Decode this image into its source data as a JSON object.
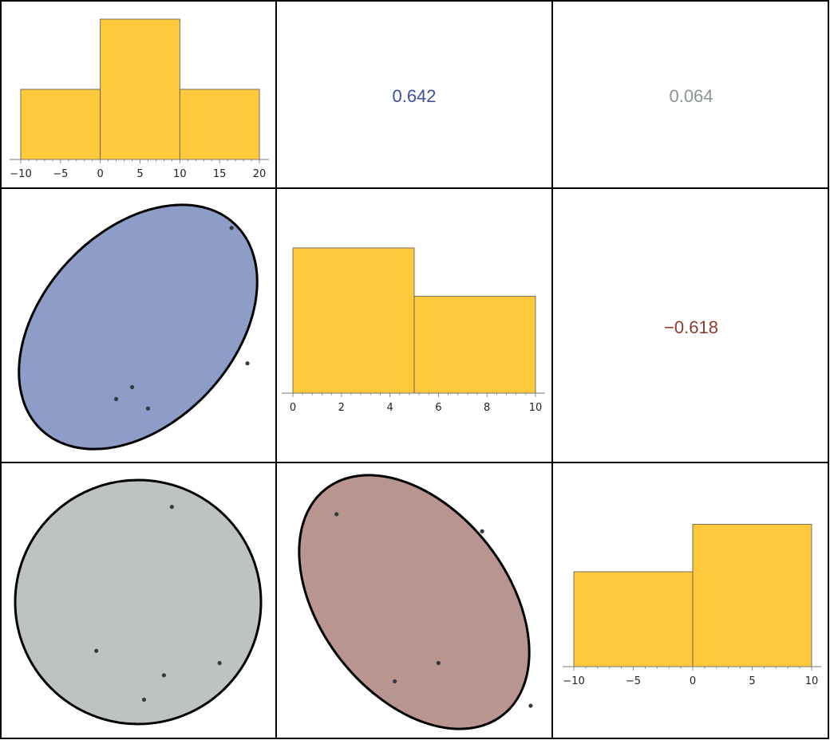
{
  "chart_data": {
    "type": "scatter-matrix",
    "histograms": [
      {
        "variable": 1,
        "bins": [
          [
            -10,
            0
          ],
          [
            0,
            10
          ],
          [
            10,
            20
          ]
        ],
        "counts": [
          1,
          2,
          1
        ],
        "xlim": [
          -10,
          20
        ],
        "ticks": [
          -10,
          -5,
          0,
          5,
          10,
          15,
          20
        ],
        "tick_labels": [
          "−10",
          "−5",
          "0",
          "5",
          "10",
          "15",
          "20"
        ]
      },
      {
        "variable": 2,
        "bins": [
          [
            0,
            5
          ],
          [
            5,
            10
          ]
        ],
        "counts": [
          3,
          2
        ],
        "xlim": [
          0,
          10
        ],
        "ticks": [
          0,
          2,
          4,
          6,
          8,
          10
        ],
        "tick_labels": [
          "0",
          "2",
          "4",
          "6",
          "8",
          "10"
        ]
      },
      {
        "variable": 3,
        "bins": [
          [
            -10,
            0
          ],
          [
            0,
            10
          ]
        ],
        "counts": [
          2,
          3
        ],
        "xlim": [
          -10,
          10
        ],
        "ticks": [
          -10,
          -5,
          0,
          5,
          10
        ],
        "tick_labels": [
          "−10",
          "−5",
          "0",
          "5",
          "10"
        ]
      }
    ],
    "correlations": [
      {
        "pair": [
          1,
          2
        ],
        "value": 0.642,
        "label": "0.642",
        "color": "#3f4f9a"
      },
      {
        "pair": [
          1,
          3
        ],
        "value": 0.064,
        "label": "0.064",
        "color": "#8a9590"
      },
      {
        "pair": [
          2,
          3
        ],
        "value": -0.618,
        "label": "−0.618",
        "color": "#8e3a30"
      }
    ],
    "scatter_panels": [
      {
        "pair": [
          1,
          2
        ],
        "fill": "#8e9cc8",
        "points": [
          {
            "x": 16.5,
            "y": 9.2
          },
          {
            "x": 4.0,
            "y": 2.5
          },
          {
            "x": 2.0,
            "y": 2.0
          },
          {
            "x": 6.0,
            "y": 1.6
          },
          {
            "x": 18.5,
            "y": 3.5
          }
        ]
      },
      {
        "pair": [
          1,
          3
        ],
        "fill": "#bdc3be",
        "points": [
          {
            "x": 9.0,
            "y": 7.8
          },
          {
            "x": -0.5,
            "y": -4.0
          },
          {
            "x": 8.0,
            "y": -6.0
          },
          {
            "x": 5.5,
            "y": -8.0
          },
          {
            "x": 15.0,
            "y": -5.0
          }
        ]
      },
      {
        "pair": [
          2,
          3
        ],
        "fill": "#b8958e",
        "points": [
          {
            "x": 1.8,
            "y": 7.2
          },
          {
            "x": 7.8,
            "y": 5.8
          },
          {
            "x": 6.0,
            "y": -5.0
          },
          {
            "x": 4.2,
            "y": -6.5
          },
          {
            "x": 9.8,
            "y": -8.5
          }
        ]
      }
    ]
  }
}
